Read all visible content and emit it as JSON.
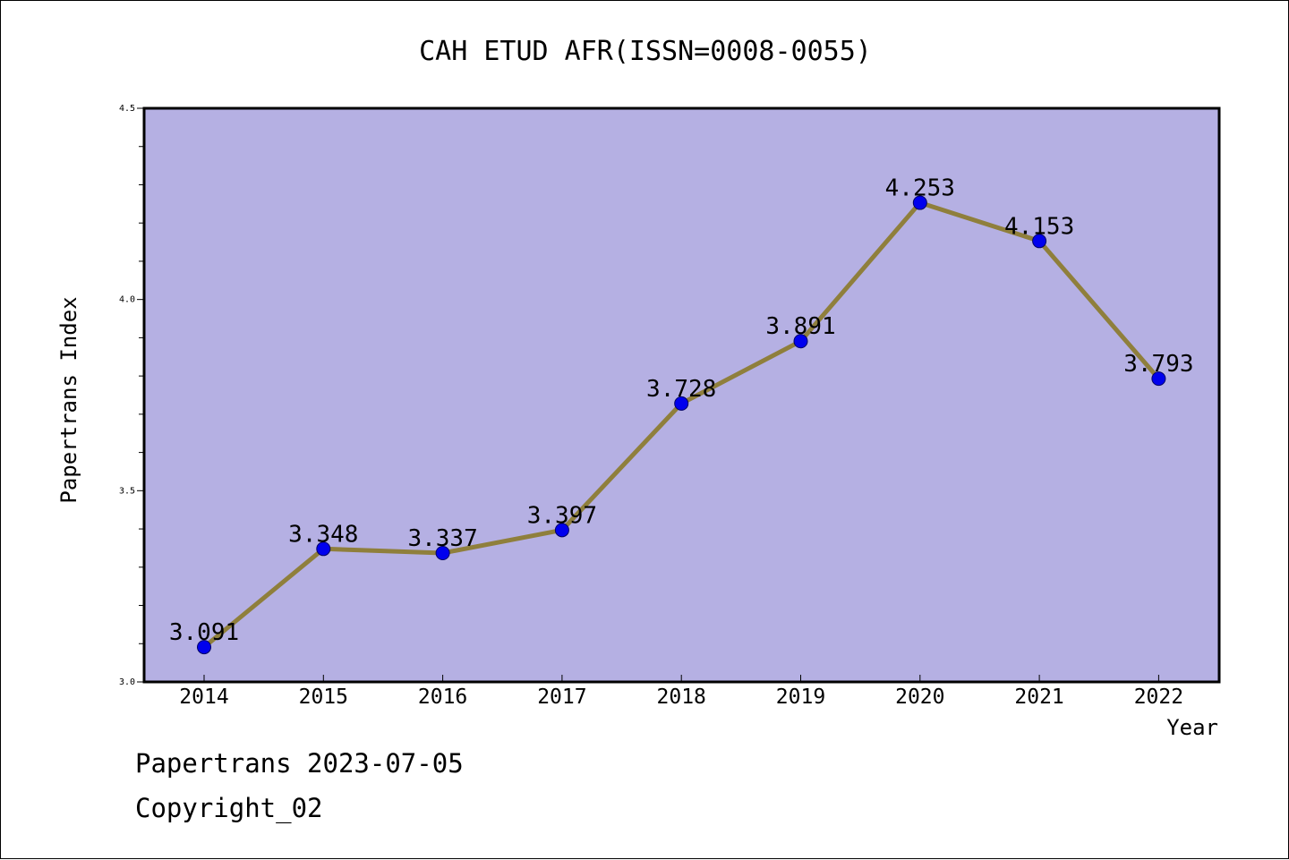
{
  "chart_data": {
    "type": "line",
    "title": "CAH ETUD AFR(ISSN=0008-0055)",
    "xlabel": "Year",
    "ylabel": "Papertrans Index",
    "x": [
      "2014",
      "2015",
      "2016",
      "2017",
      "2018",
      "2019",
      "2020",
      "2021",
      "2022"
    ],
    "series": [
      {
        "values": [
          3.091,
          3.348,
          3.337,
          3.397,
          3.728,
          3.891,
          4.253,
          4.153,
          3.793
        ],
        "data_labels": [
          "3.091",
          "3.348",
          "3.337",
          "3.397",
          "3.728",
          "3.891",
          "4.253",
          "4.153",
          "3.793"
        ]
      }
    ],
    "ylim": [
      3.0,
      4.5
    ],
    "yticks": [
      "3.0",
      "3.5",
      "4.0",
      "4.5"
    ],
    "y_minor_step": 0.1,
    "grid": false,
    "legend": "none",
    "colors": {
      "plot_background": "#b5b0e3",
      "line": "#8f7f3c",
      "marker": "#0000ee",
      "axis": "#000000"
    }
  },
  "footer": {
    "date_line": "Papertrans 2023-07-05",
    "copyright_line": "Copyright_02"
  }
}
